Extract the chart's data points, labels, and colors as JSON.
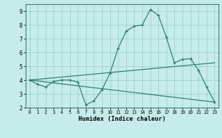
{
  "title": "",
  "xlabel": "Humidex (Indice chaleur)",
  "background_color": "#c5ecea",
  "grid_color": "#a0d4d0",
  "line_color": "#2e7d6e",
  "xlim": [
    -0.5,
    23.5
  ],
  "ylim": [
    2,
    9.5
  ],
  "x_ticks": [
    0,
    1,
    2,
    3,
    4,
    5,
    6,
    7,
    8,
    9,
    10,
    11,
    12,
    13,
    14,
    15,
    16,
    17,
    18,
    19,
    20,
    21,
    22,
    23
  ],
  "y_ticks": [
    2,
    3,
    4,
    5,
    6,
    7,
    8,
    9
  ],
  "line1_x": [
    0,
    1,
    2,
    3,
    4,
    5,
    6,
    7,
    8,
    9,
    10,
    11,
    12,
    13,
    14,
    15,
    16,
    17,
    18,
    19,
    20,
    21,
    22,
    23
  ],
  "line1_y": [
    4.0,
    3.7,
    3.5,
    3.9,
    4.0,
    4.0,
    3.85,
    2.2,
    2.5,
    3.3,
    4.5,
    6.3,
    7.55,
    7.9,
    8.0,
    9.1,
    8.7,
    7.1,
    5.25,
    5.5,
    5.55,
    4.7,
    3.5,
    2.4
  ],
  "line2_x": [
    0,
    23
  ],
  "line2_y": [
    4.0,
    5.25
  ],
  "line3_x": [
    0,
    23
  ],
  "line3_y": [
    4.0,
    2.4
  ]
}
